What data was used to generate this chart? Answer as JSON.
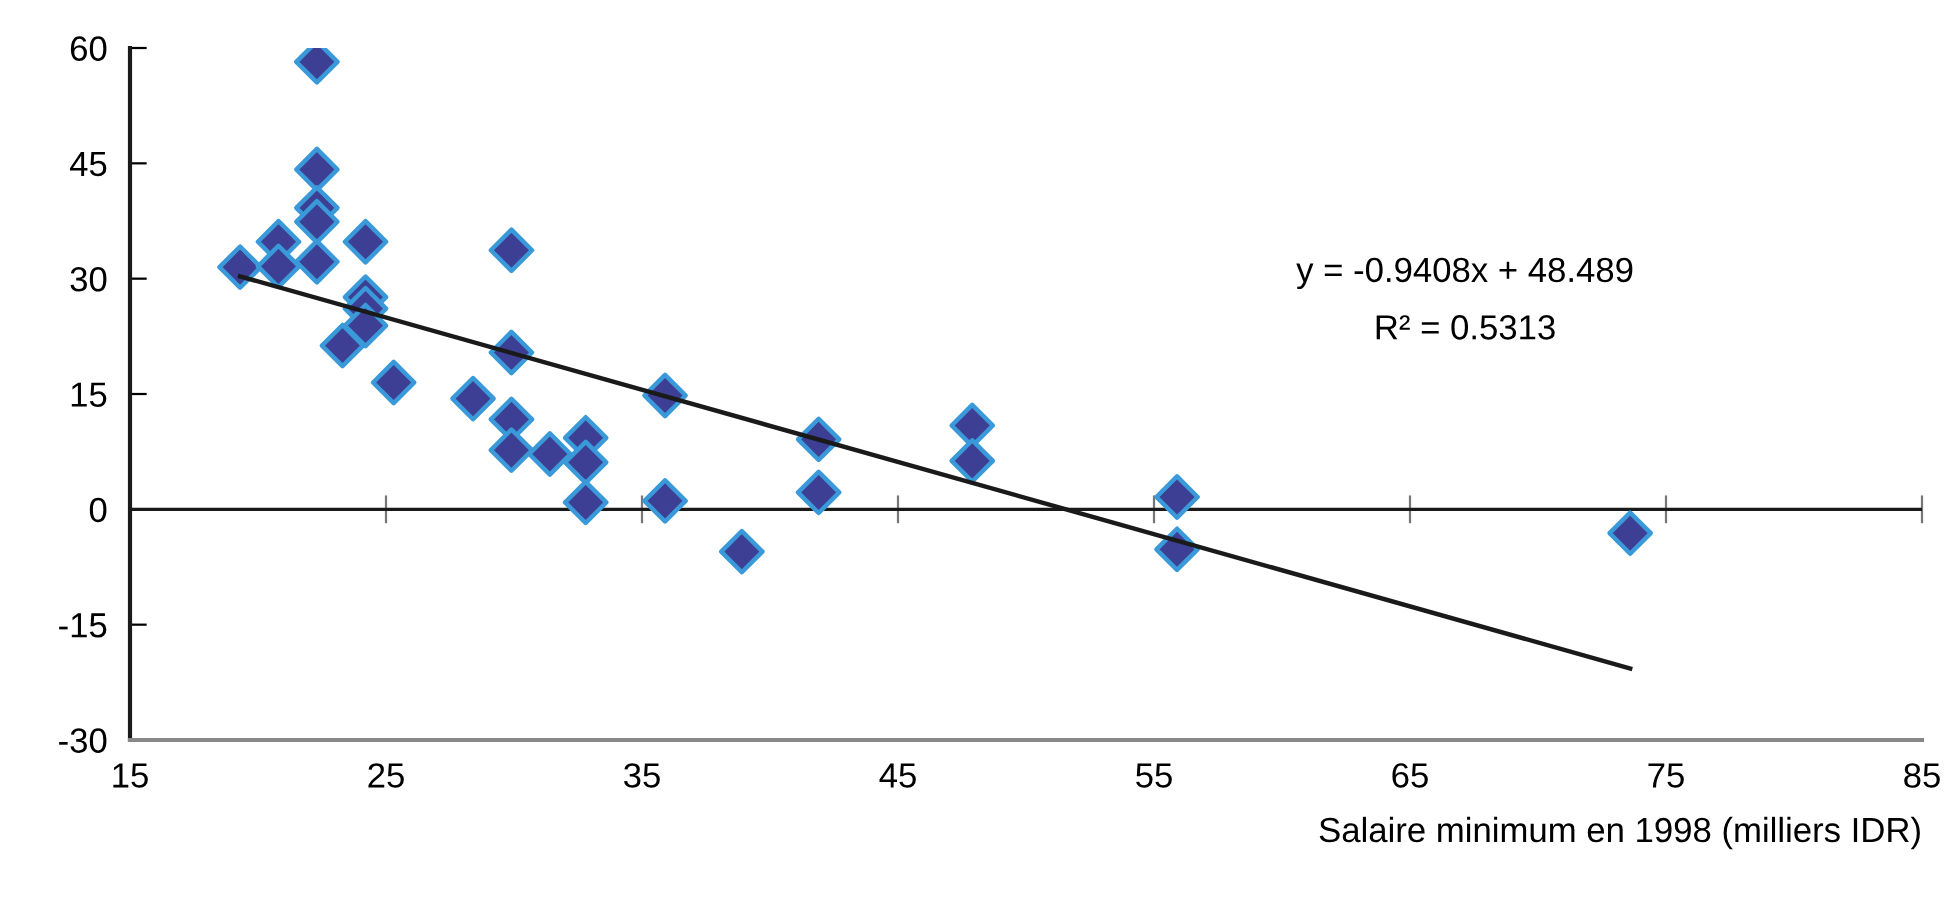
{
  "chart_data": {
    "type": "scatter",
    "xlabel": "Salaire minimum en 1998 (milliers IDR)",
    "series": [
      {
        "color": "#3c3f94",
        "marker": "diamond",
        "x": [
          19.3,
          20.8,
          20.8,
          22.3,
          22.3,
          22.3,
          22.3,
          22.3,
          23.3,
          24.2,
          24.2,
          24.2,
          24.2,
          25.3,
          28.4,
          29.9,
          29.9,
          29.9,
          29.9,
          31.4,
          32.8,
          32.8,
          32.8,
          35.9,
          35.9,
          38.9,
          41.9,
          41.9,
          47.9,
          47.9,
          55.9,
          55.9,
          73.6
        ],
        "values": [
          31.5,
          34.8,
          31.6,
          58.2,
          44.2,
          39.2,
          37.4,
          32.2,
          21.3,
          34.8,
          27.6,
          26.1,
          23.9,
          16.5,
          14.4,
          33.7,
          20.4,
          11.7,
          7.7,
          7.2,
          9.3,
          6.1,
          0.9,
          14.8,
          1.1,
          -5.5,
          9.1,
          2.2,
          10.9,
          6.3,
          1.6,
          -5.2,
          -3.1
        ]
      },
      {
        "type": "line",
        "color": "#1a1a1a",
        "x": [
          19.3,
          73.6
        ],
        "values": [
          30.3,
          -20.7
        ]
      }
    ],
    "annotations": [
      "y = -0.9408x + 48.489",
      "R² = 0.5313"
    ],
    "ref_lines": [
      {
        "axis": "y",
        "value": 0,
        "color": "#1a1a1a"
      }
    ],
    "xlim": [
      15,
      85
    ],
    "xticks": [
      15,
      25,
      35,
      45,
      55,
      65,
      75,
      85
    ],
    "ylim": [
      -30,
      60
    ],
    "yticks": [
      -30,
      -15,
      0,
      15,
      30,
      45,
      60
    ],
    "grid": false,
    "legend": false
  }
}
